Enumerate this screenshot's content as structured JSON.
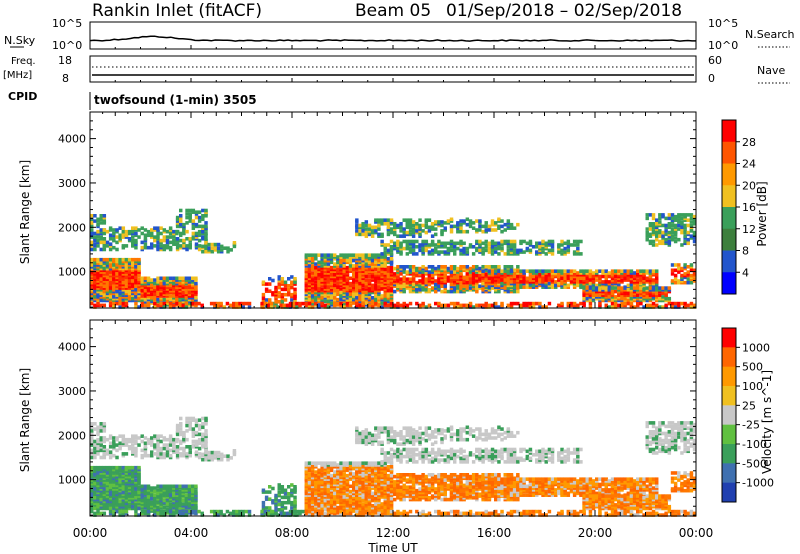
{
  "header": {
    "station": "Rankin Inlet (fitACF)",
    "beam": "Beam 05",
    "date_range": "01/Sep/2018 – 02/Sep/2018"
  },
  "panel_labels": {
    "nsky": "N.Sky",
    "nsearch": "N.Search",
    "freq_line1": "Freq.",
    "freq_line2": "[MHz]",
    "nave": "Nave",
    "cpid": "CPID",
    "cpid_value": "twofsound (1-min) 3505"
  },
  "noise_axis": {
    "left_ticks": [
      "10^5",
      "10^0"
    ],
    "right_ticks": [
      "10^5",
      "10^0"
    ]
  },
  "freq_axis": {
    "left_ticks": [
      "18",
      "8"
    ],
    "right_ticks": [
      "60",
      "0"
    ]
  },
  "chart_data": [
    {
      "type": "heatmap",
      "name": "power",
      "ylabel": "Slant Range [km]",
      "xlabel": "Time UT",
      "x_ticks": [
        "00:00",
        "04:00",
        "08:00",
        "12:00",
        "16:00",
        "20:00",
        "00:00"
      ],
      "y_ticks": [
        "1000",
        "2000",
        "3000",
        "4000"
      ],
      "xlim_hours": [
        0,
        24
      ],
      "ylim_km": [
        180,
        4600
      ],
      "colorbar": {
        "label": "Power [dB]",
        "tick_labels": [
          "28",
          "24",
          "20",
          "16",
          "12",
          "8",
          "4"
        ],
        "colors": [
          "#0000ff",
          "#2255cc",
          "#3d7f3d",
          "#3a9f5a",
          "#f0c020",
          "#ff9900",
          "#ff5500",
          "#ff0000"
        ]
      }
    },
    {
      "type": "heatmap",
      "name": "velocity",
      "ylabel": "Slant Range [km]",
      "xlabel": "Time UT",
      "x_ticks": [
        "00:00",
        "04:00",
        "08:00",
        "12:00",
        "16:00",
        "20:00",
        "00:00"
      ],
      "y_ticks": [
        "1000",
        "2000",
        "3000",
        "4000"
      ],
      "xlim_hours": [
        0,
        24
      ],
      "ylim_km": [
        180,
        4600
      ],
      "colorbar": {
        "label": "Velocity [m s^-1]",
        "tick_labels": [
          "1000",
          "500",
          "100",
          "25",
          "-25",
          "-100",
          "-500",
          "-1000"
        ],
        "colors": [
          "#2040b0",
          "#3f70b0",
          "#3a9f5a",
          "#60c040",
          "#c8c8c8",
          "#f0c020",
          "#ff9900",
          "#ff6600",
          "#ff0000"
        ]
      }
    }
  ],
  "time_axis": {
    "label": "Time UT",
    "ticks": [
      "00:00",
      "04:00",
      "08:00",
      "12:00",
      "16:00",
      "20:00",
      "00:00"
    ]
  }
}
